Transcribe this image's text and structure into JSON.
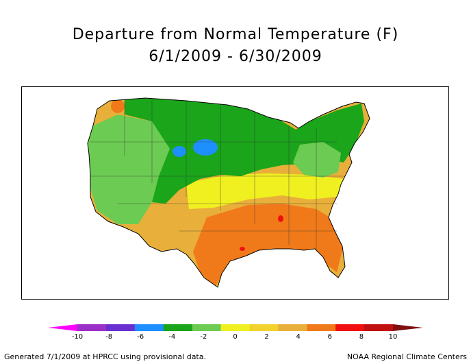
{
  "header": {
    "title": "Departure from Normal Temperature (F)",
    "period": "6/1/2009 - 6/30/2009"
  },
  "legend": {
    "ticks": [
      "-10",
      "-8",
      "-6",
      "-4",
      "-2",
      "0",
      "2",
      "4",
      "6",
      "8",
      "10"
    ],
    "colors": [
      "#ff00ff",
      "#9b30c8",
      "#6a2fd0",
      "#1e8fff",
      "#1aa51a",
      "#6ccb52",
      "#f0f020",
      "#f2d22c",
      "#e8b03a",
      "#f07a1a",
      "#f01010",
      "#c01010",
      "#801010"
    ]
  },
  "map": {
    "region": "contiguous United States",
    "palette": {
      "cool_strong": "#1e8fff",
      "cool": "#1aa51a",
      "cool_mild": "#6ccb52",
      "neutral": "#f0f020",
      "warm_mild": "#e8b03a",
      "warm": "#f07a1a",
      "hot": "#f01010"
    }
  },
  "footer": {
    "generated": "Generated 7/1/2009 at HPRCC using provisional data.",
    "source": "NOAA Regional Climate Centers"
  }
}
